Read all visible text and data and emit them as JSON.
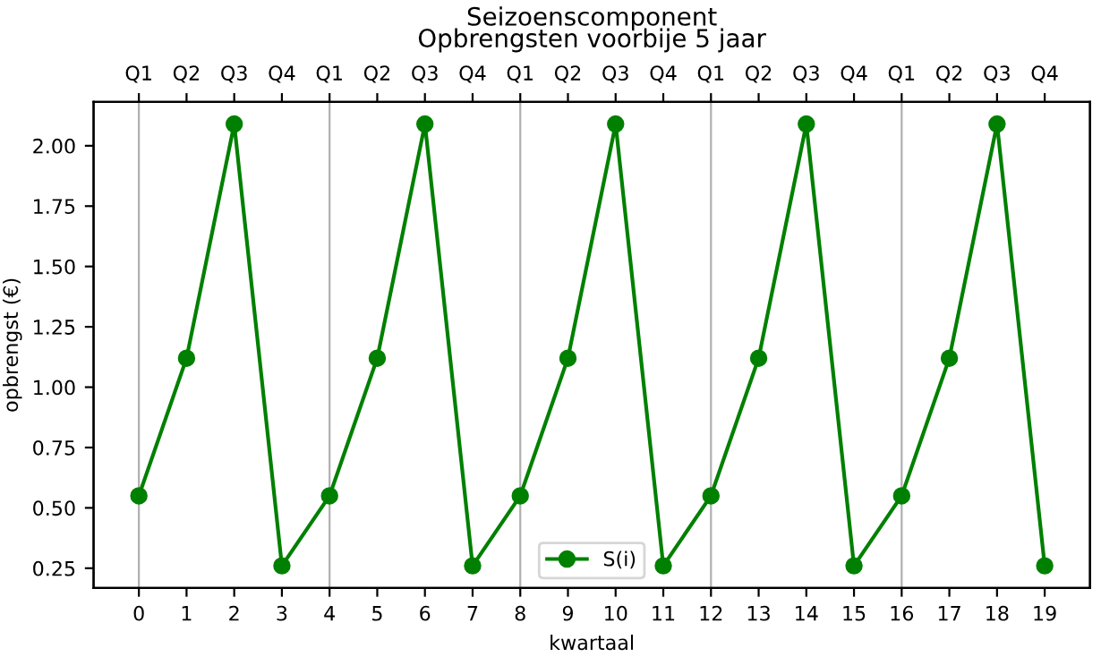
{
  "chart_data": {
    "type": "line",
    "title": "Seizoenscomponent",
    "subtitle": "Opbrengsten voorbije 5 jaar",
    "xlabel": "kwartaal",
    "ylabel": "opbrengst (€)",
    "x": [
      0,
      1,
      2,
      3,
      4,
      5,
      6,
      7,
      8,
      9,
      10,
      11,
      12,
      13,
      14,
      15,
      16,
      17,
      18,
      19
    ],
    "series": [
      {
        "name": "S(i)",
        "color": "#008000",
        "values": [
          0.55,
          1.12,
          2.09,
          0.26,
          0.55,
          1.12,
          2.09,
          0.26,
          0.55,
          1.12,
          2.09,
          0.26,
          0.55,
          1.12,
          2.09,
          0.26,
          0.55,
          1.12,
          2.09,
          0.26
        ]
      }
    ],
    "marker": "circle",
    "line_style": "solid",
    "legend": "bottom",
    "xlim": [
      -0.95,
      19.95
    ],
    "xticks": [
      0,
      1,
      2,
      3,
      4,
      5,
      6,
      7,
      8,
      9,
      10,
      11,
      12,
      13,
      14,
      15,
      16,
      17,
      18,
      19
    ],
    "annotations": [
      "Q1",
      "Q2",
      "Q3",
      "Q4",
      "Q1",
      "Q2",
      "Q3",
      "Q4",
      "Q1",
      "Q2",
      "Q3",
      "Q4",
      "Q1",
      "Q2",
      "Q3",
      "Q4",
      "Q1",
      "Q2",
      "Q3",
      "Q4"
    ],
    "ylim": [
      0.168,
      2.182
    ],
    "yticks": [
      0.25,
      {
        "value": 0.5,
        "label": "0.50"
      },
      0.75,
      {
        "value": 1.0,
        "label": "1.00"
      },
      1.25,
      {
        "value": 1.5,
        "label": "1.50"
      },
      1.75,
      {
        "value": 2.0,
        "label": "2.00"
      }
    ],
    "ref_lines": [
      {
        "axis": "x",
        "value": 0,
        "color": "#b0b0b0"
      },
      {
        "axis": "x",
        "value": 4,
        "color": "#b0b0b0"
      },
      {
        "axis": "x",
        "value": 8,
        "color": "#b0b0b0"
      },
      {
        "axis": "x",
        "value": 12,
        "color": "#b0b0b0"
      },
      {
        "axis": "x",
        "value": 16,
        "color": "#b0b0b0"
      }
    ]
  }
}
